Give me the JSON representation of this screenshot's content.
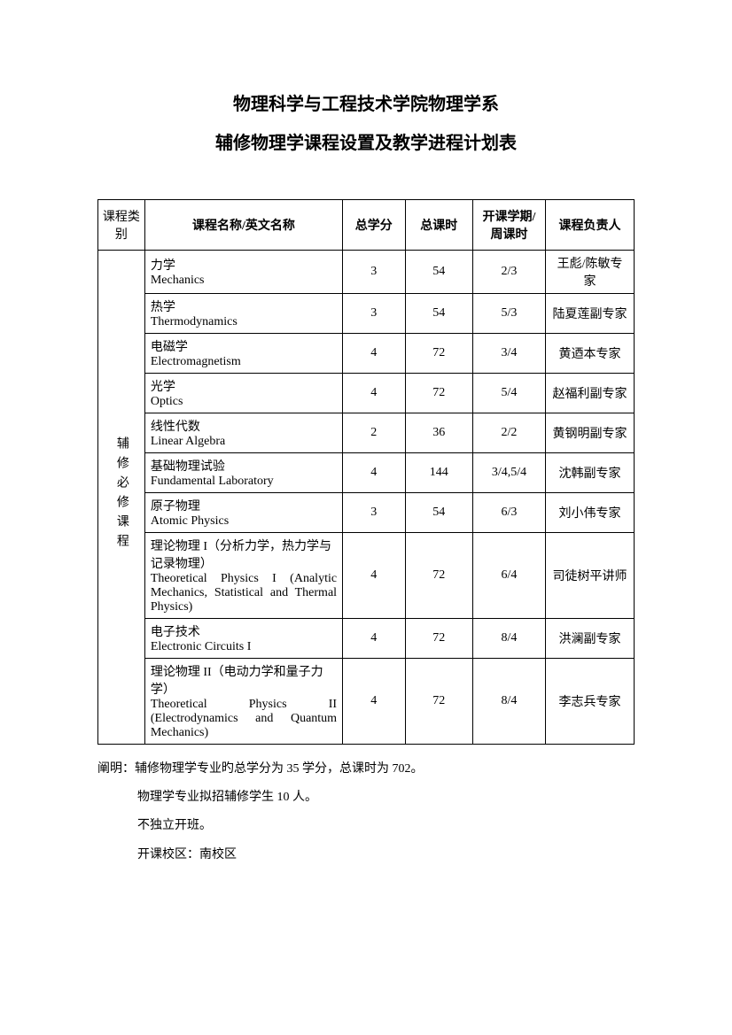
{
  "title": "物理科学与工程技术学院物理学系",
  "subtitle": "辅修物理学课程设置及教学进程计划表",
  "headers": {
    "category": "课程类别",
    "name": "课程名称/英文名称",
    "credit": "总学分",
    "hours": "总课时",
    "semester": "开课学期/周课时",
    "teacher": "课程负责人"
  },
  "category_label": "辅修必修课程",
  "courses": [
    {
      "cn": "力学",
      "en": "Mechanics",
      "credit": "3",
      "hours": "54",
      "semester": "2/3",
      "teacher": "王彪/陈敏专家"
    },
    {
      "cn": "热学",
      "en": "Thermodynamics",
      "credit": "3",
      "hours": "54",
      "semester": "5/3",
      "teacher": "陆夏莲副专家"
    },
    {
      "cn": "电磁学",
      "en": "Electromagnetism",
      "credit": "4",
      "hours": "72",
      "semester": "3/4",
      "teacher": "黄迺本专家"
    },
    {
      "cn": "光学",
      "en": "Optics",
      "credit": "4",
      "hours": "72",
      "semester": "5/4",
      "teacher": "赵福利副专家"
    },
    {
      "cn": "线性代数",
      "en": "Linear Algebra",
      "credit": "2",
      "hours": "36",
      "semester": "2/2",
      "teacher": "黄钢明副专家"
    },
    {
      "cn": "基础物理试验",
      "en": "Fundamental Laboratory",
      "credit": "4",
      "hours": "144",
      "semester": "3/4,5/4",
      "teacher": "沈韩副专家"
    },
    {
      "cn": "原子物理",
      "en": "Atomic Physics",
      "credit": "3",
      "hours": "54",
      "semester": "6/3",
      "teacher": "刘小伟专家"
    },
    {
      "cn": "理论物理 I（分析力学，热力学与记录物理）",
      "en": "Theoretical Physics I (Analytic Mechanics, Statistical and Thermal Physics)",
      "credit": "4",
      "hours": "72",
      "semester": "6/4",
      "teacher": "司徒树平讲师",
      "justify": true
    },
    {
      "cn": "电子技术",
      "en": "Electronic Circuits I",
      "credit": "4",
      "hours": "72",
      "semester": "8/4",
      "teacher": "洪澜副专家"
    },
    {
      "cn": "理论物理 II（电动力学和量子力学）",
      "en": "Theoretical Physics II (Electrodynamics and Quantum Mechanics)",
      "credit": "4",
      "hours": "72",
      "semester": "8/4",
      "teacher": "李志兵专家",
      "justify": true
    }
  ],
  "notes": {
    "line1": "阐明：辅修物理学专业旳总学分为 35 学分，总课时为 702。",
    "line2": "物理学专业拟招辅修学生 10 人。",
    "line3": "不独立开班。",
    "line4": "开课校区：南校区"
  }
}
